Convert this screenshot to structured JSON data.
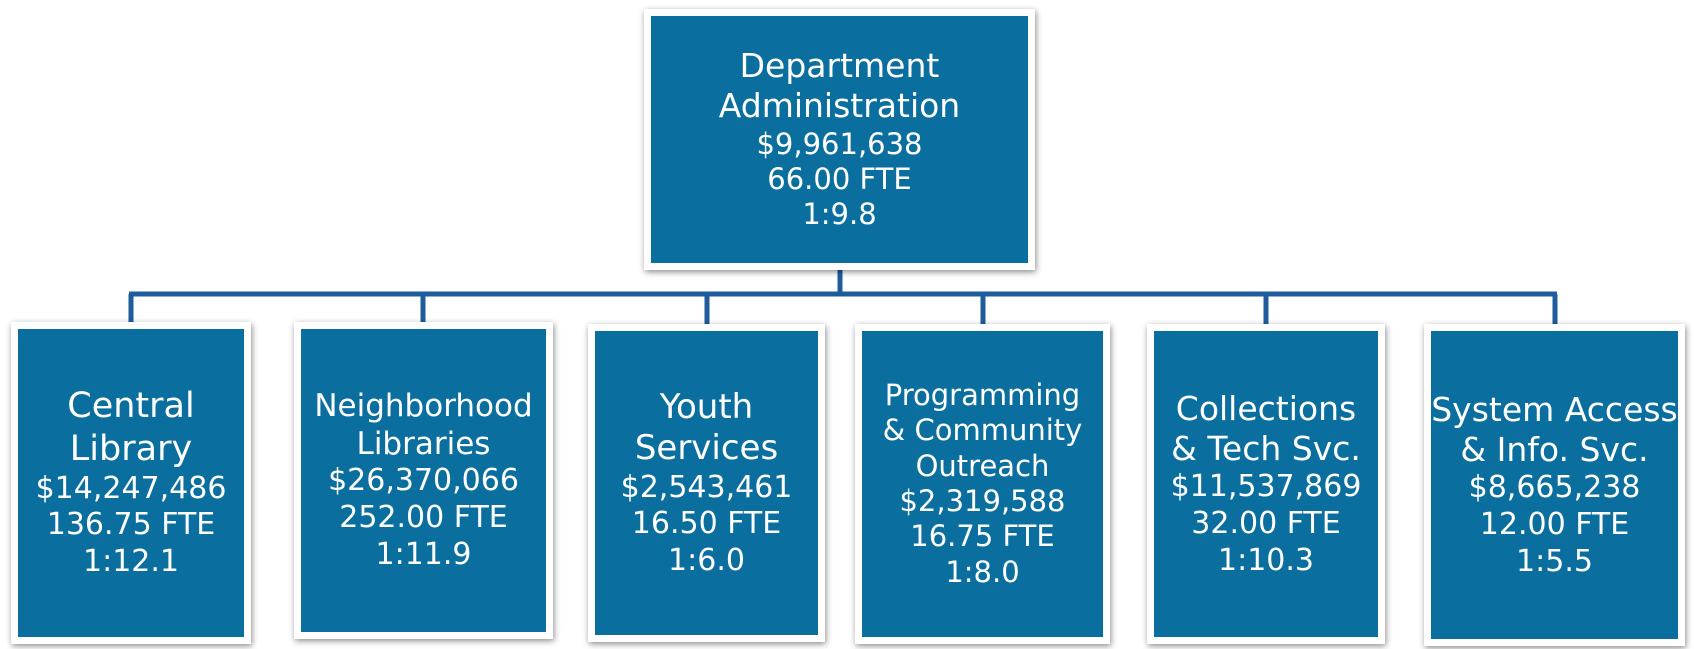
{
  "nodes": [
    {
      "name": [
        "Department",
        "Administration"
      ],
      "budget": "$9,961,638",
      "fte": "66.00 FTE",
      "ratio": "1:9.8"
    },
    {
      "name": [
        "Central",
        "Library"
      ],
      "budget": "$14,247,486",
      "fte": "136.75 FTE",
      "ratio": "1:12.1"
    },
    {
      "name": [
        "Neighborhood",
        "Libraries"
      ],
      "budget": "$26,370,066",
      "fte": "252.00 FTE",
      "ratio": "1:11.9"
    },
    {
      "name": [
        "Youth",
        "Services"
      ],
      "budget": "$2,543,461",
      "fte": "16.50 FTE",
      "ratio": "1:6.0"
    },
    {
      "name": [
        "Programming",
        "& Community",
        "Outreach"
      ],
      "budget": "$2,319,588",
      "fte": "16.75 FTE",
      "ratio": "1:8.0"
    },
    {
      "name": [
        "Collections",
        "& Tech Svc."
      ],
      "budget": "$11,537,869",
      "fte": "32.00 FTE",
      "ratio": "1:10.3"
    },
    {
      "name": [
        "System Access",
        "& Info. Svc."
      ],
      "budget": "$8,665,238",
      "fte": "12.00 FTE",
      "ratio": "1:5.5"
    }
  ]
}
